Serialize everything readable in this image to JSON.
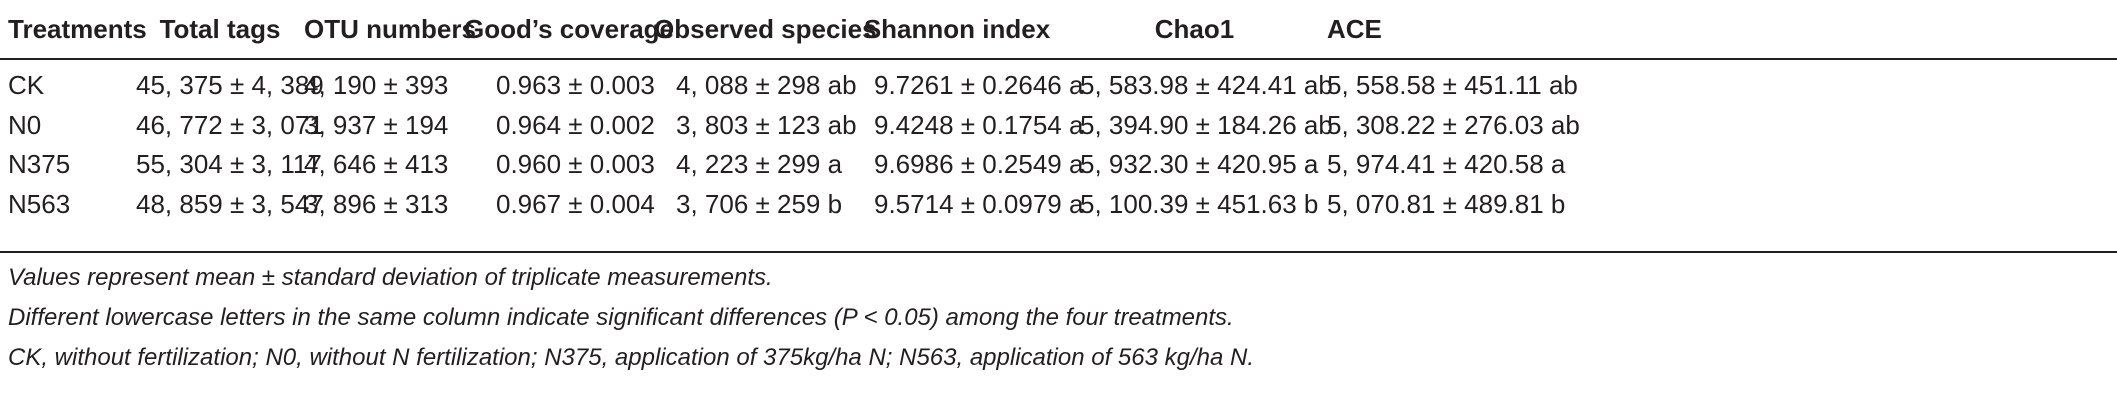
{
  "table": {
    "headers": [
      "Treatments",
      "Total tags",
      "OTU numbers",
      "Good’s coverage",
      "Observed species",
      "Shannon index",
      "Chao1",
      "ACE"
    ],
    "rows": [
      [
        "CK",
        "45, 375 ± 4, 389",
        "4, 190 ± 393",
        "0.963 ± 0.003",
        "4, 088 ± 298 ab",
        "9.7261 ± 0.2646 a",
        "5, 583.98 ± 424.41 ab",
        "5, 558.58 ± 451.11 ab"
      ],
      [
        "N0",
        "46, 772 ± 3, 071",
        "3, 937 ± 194",
        "0.964 ± 0.002",
        "3, 803 ± 123 ab",
        "9.4248 ± 0.1754 a",
        "5, 394.90 ± 184.26 ab",
        "5, 308.22 ± 276.03 ab"
      ],
      [
        "N375",
        "55, 304 ± 3, 117",
        "4, 646 ± 413",
        "0.960 ± 0.003",
        "4, 223 ± 299 a",
        "9.6986 ± 0.2549 a",
        "5, 932.30 ± 420.95 a",
        "5, 974.41 ± 420.58 a"
      ],
      [
        "N563",
        "48, 859 ± 3, 547",
        "3, 896 ± 313",
        "0.967 ± 0.004",
        "3, 706 ± 259 b",
        "9.5714 ± 0.0979 a",
        "5, 100.39 ± 451.63 b",
        "5, 070.81 ± 489.81 b"
      ]
    ]
  },
  "notes": [
    "Values represent mean ± standard deviation of triplicate measurements.",
    "Different lowercase letters in the same column indicate significant differences (P < 0.05) among the four treatments.",
    "CK, without fertilization; N0, without N fertilization; N375, application of 375kg/ha N; N563, application of 563 kg/ha N."
  ]
}
